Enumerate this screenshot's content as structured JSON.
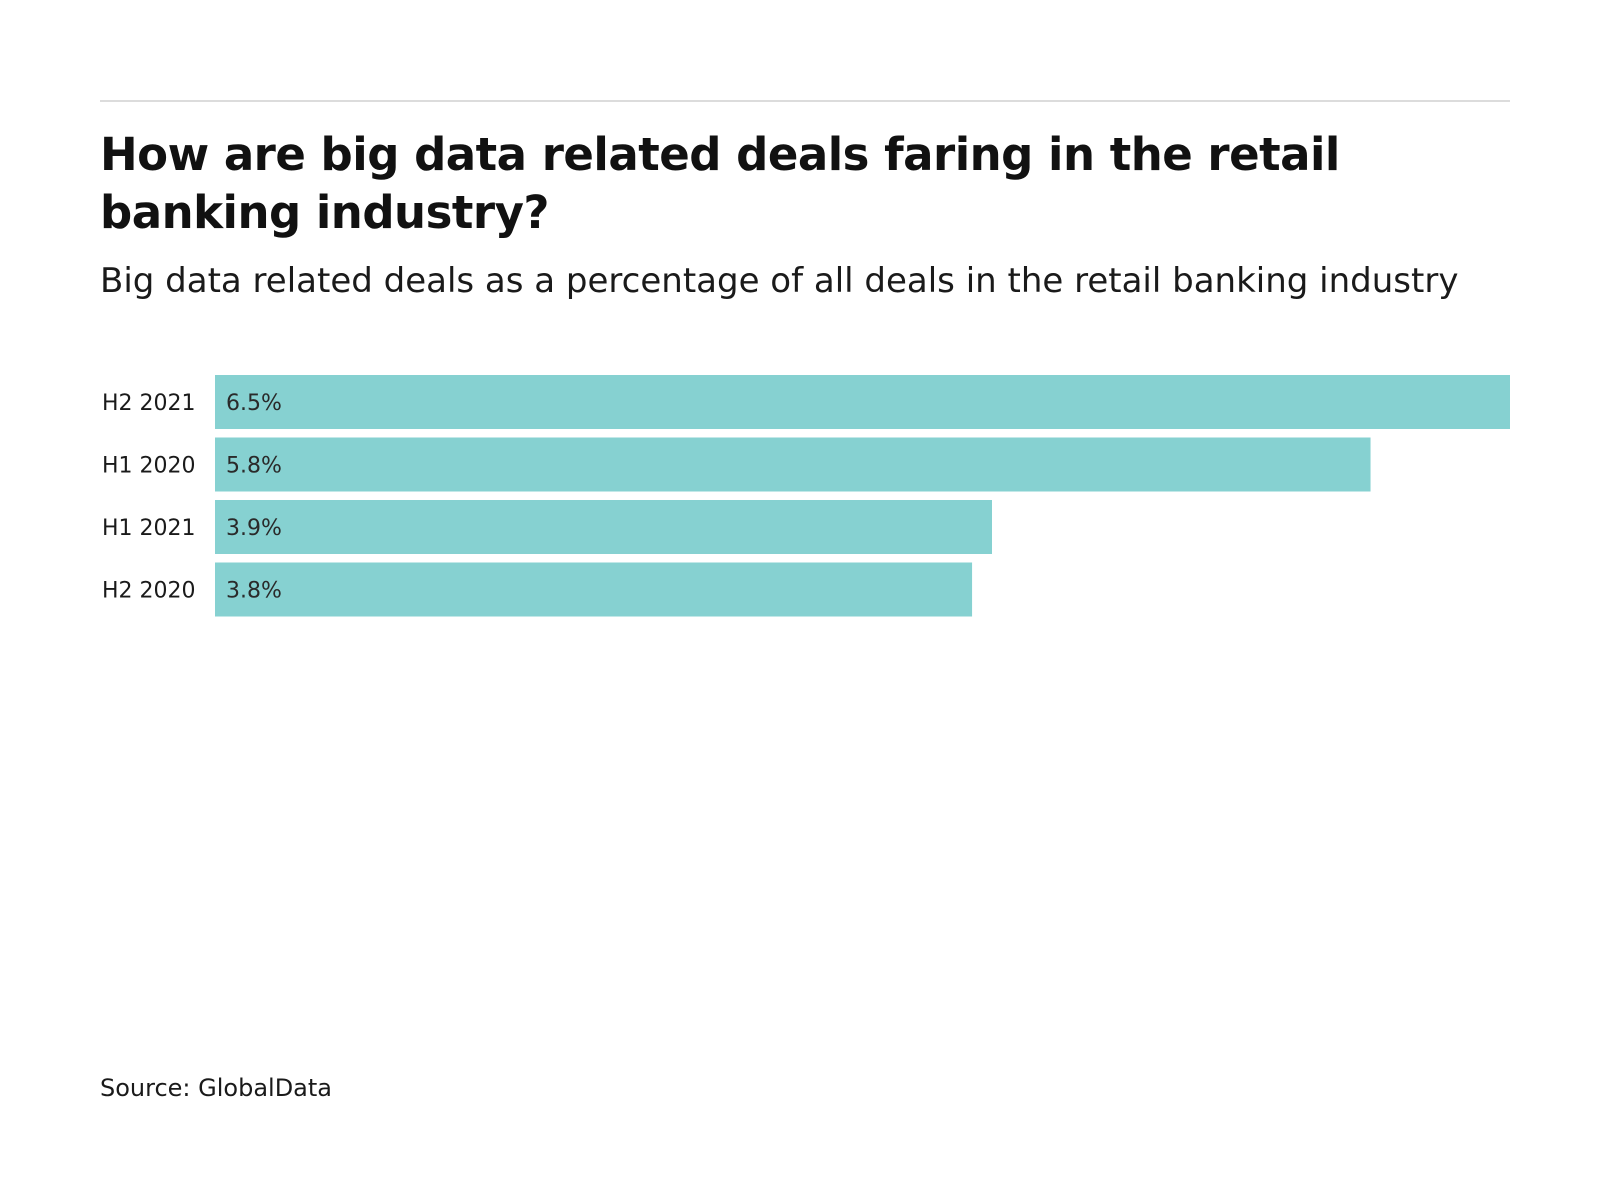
{
  "chart_data": {
    "type": "bar",
    "orientation": "horizontal",
    "title": "How are big data related deals faring in the retail banking industry?",
    "subtitle": "Big data related deals as a percentage of all deals in the retail banking industry",
    "categories": [
      "H2 2021",
      "H1 2020",
      "H1 2021",
      "H2 2020"
    ],
    "values": [
      6.5,
      5.8,
      3.9,
      3.8
    ],
    "value_labels": [
      "6.5%",
      "5.8%",
      "3.9%",
      "3.8%"
    ],
    "unit": "%",
    "xlim": [
      0,
      6.5
    ],
    "grid": false,
    "legend": "none",
    "bar_color": "#86d1d1",
    "source": "Source: GlobalData"
  }
}
